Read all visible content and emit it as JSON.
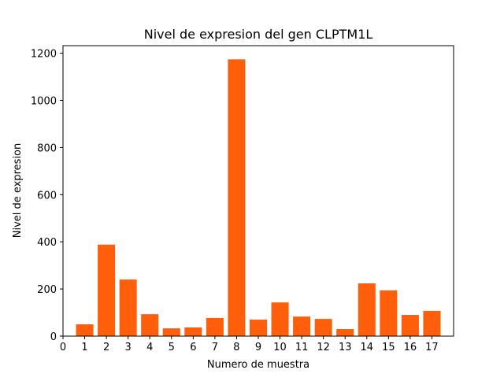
{
  "chart_data": {
    "type": "bar",
    "title": "Nivel de expresion del gen CLPTM1L",
    "xlabel": "Numero de muestra",
    "ylabel": "Nivel de expresion",
    "categories": [
      1,
      2,
      3,
      4,
      5,
      6,
      7,
      8,
      9,
      10,
      11,
      12,
      13,
      14,
      15,
      16,
      17
    ],
    "values": [
      50,
      388,
      240,
      93,
      33,
      37,
      77,
      1174,
      70,
      143,
      83,
      73,
      30,
      224,
      194,
      90,
      107
    ],
    "xticks": [
      0,
      1,
      2,
      3,
      4,
      5,
      6,
      7,
      8,
      9,
      10,
      11,
      12,
      13,
      14,
      15,
      16,
      17
    ],
    "yticks": [
      0,
      200,
      400,
      600,
      800,
      1000,
      1200
    ],
    "xlim": [
      0,
      18
    ],
    "ylim": [
      0,
      1232
    ],
    "bar_color": "#ff5f0a",
    "grid": false,
    "legend": "none"
  }
}
